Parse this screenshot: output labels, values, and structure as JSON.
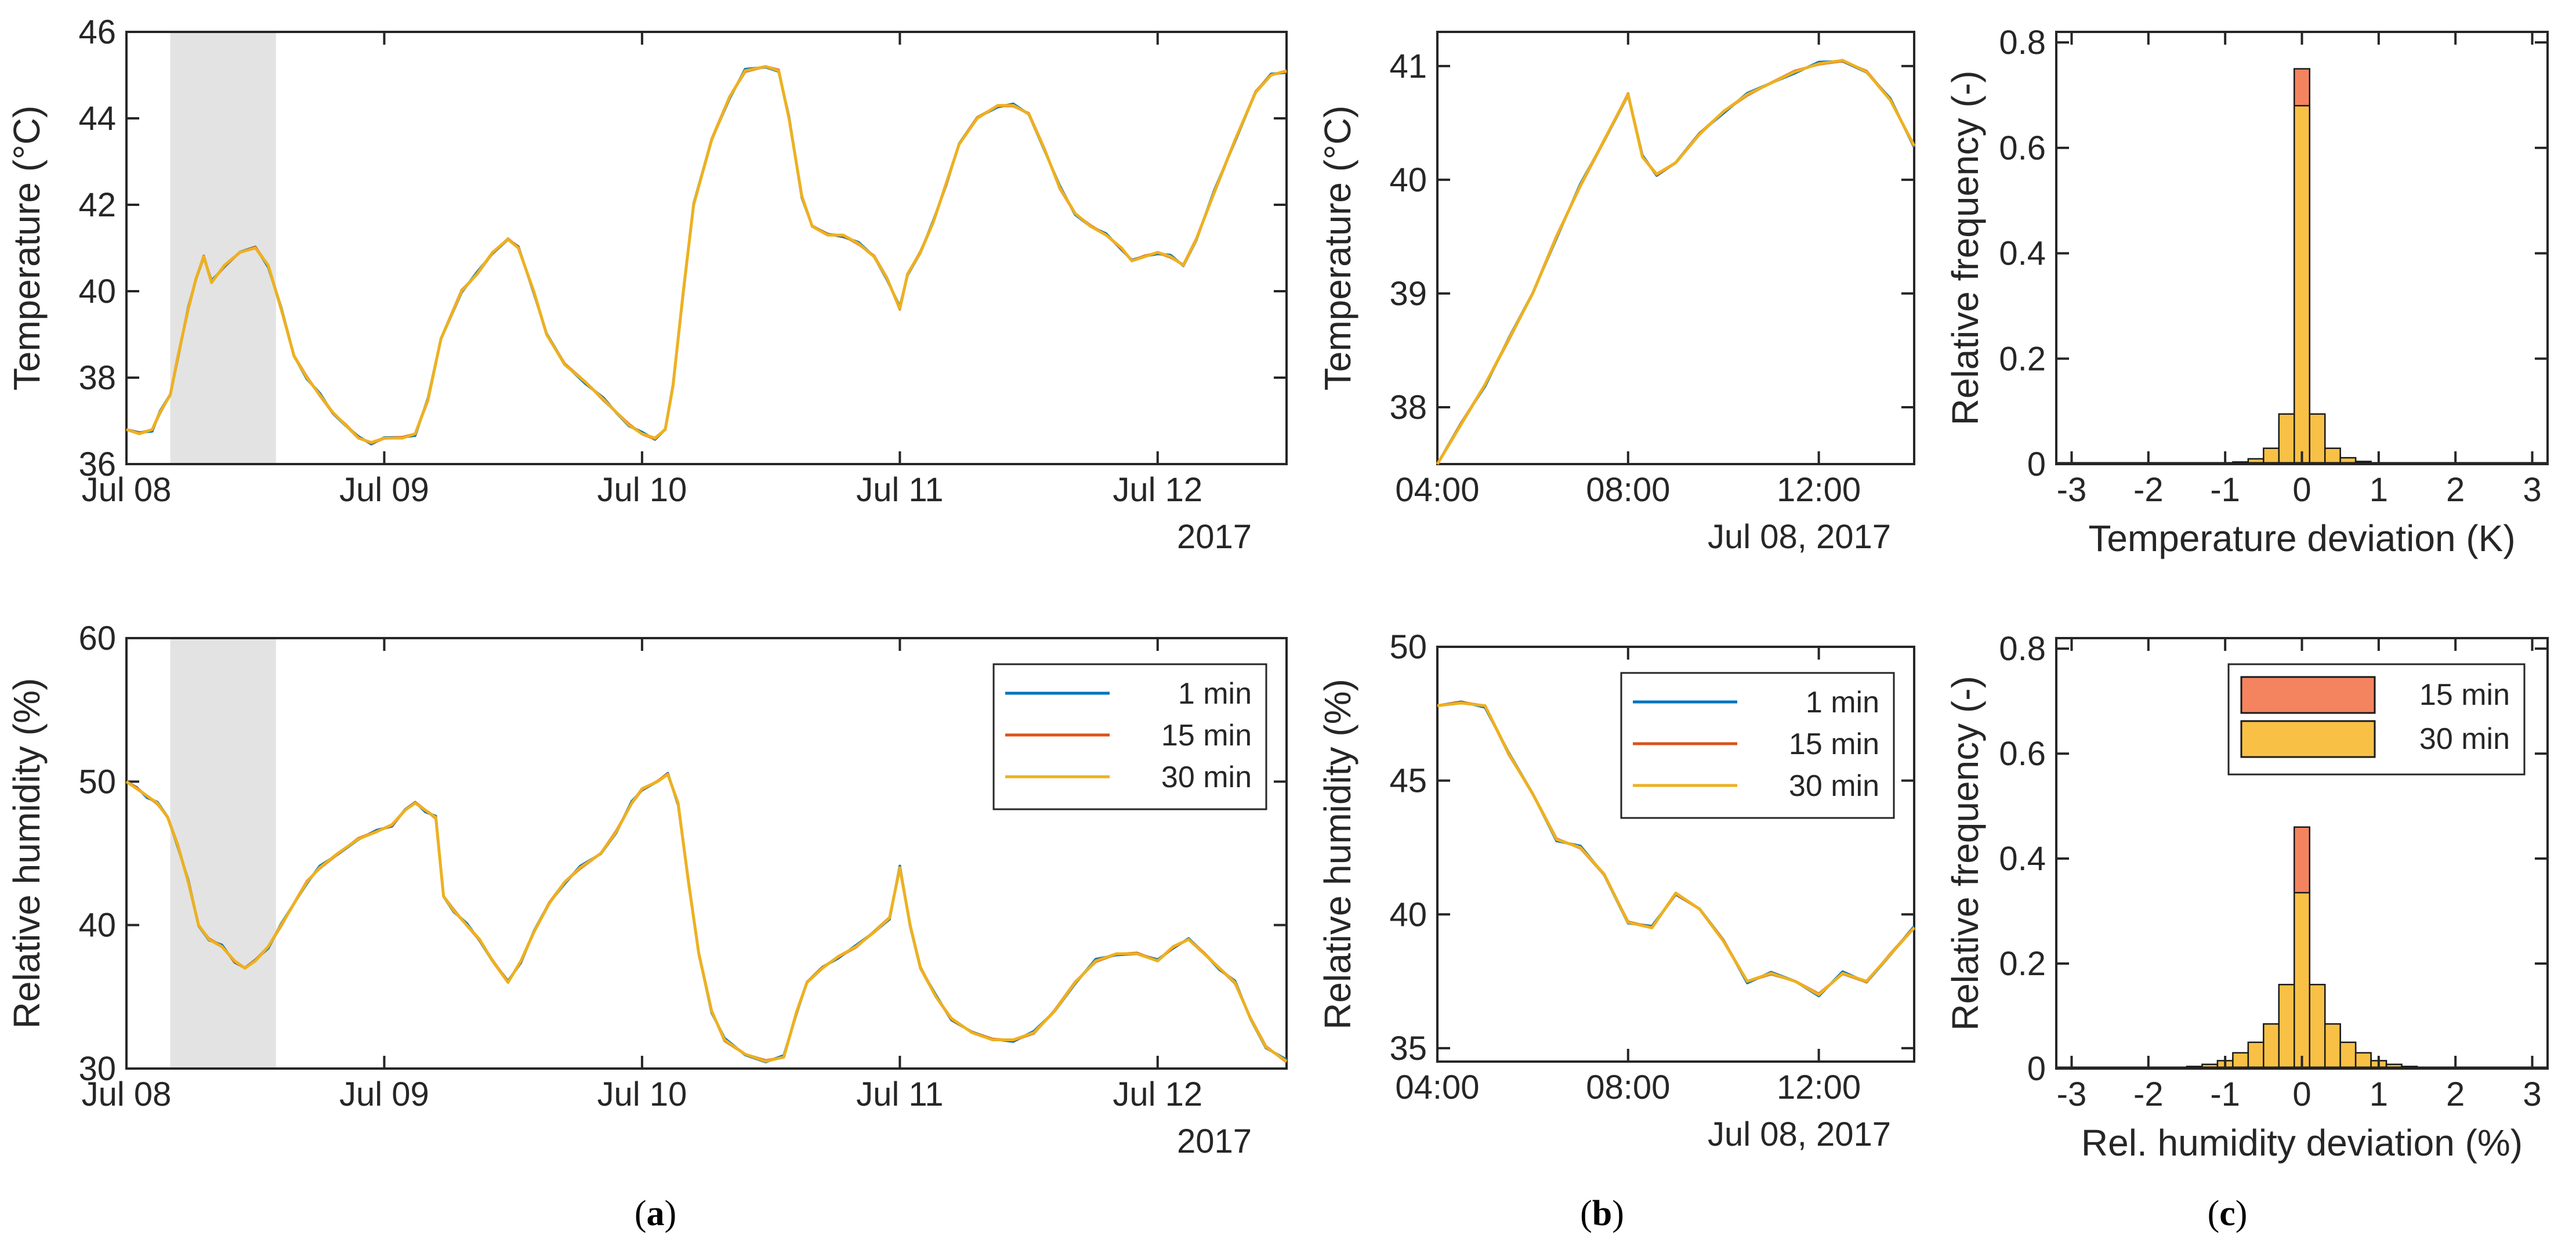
{
  "figure": {
    "captions": [
      "(a)",
      "(b)",
      "(c)"
    ],
    "caption_open": "(",
    "caption_close": ")",
    "caption_letters": [
      "a",
      "b",
      "c"
    ]
  },
  "colors": {
    "c1": "#0072BD",
    "c15": "#D95319",
    "c30": "#EDB120",
    "hist15": "#F4845F",
    "hist30": "#F8C146",
    "shade": "#E3E3E3",
    "axis": "#262626"
  },
  "chart_data": [
    {
      "id": "a-top",
      "type": "line",
      "ylabel": "Temperature (°C)",
      "ylim": [
        36,
        46
      ],
      "yticks": [
        "36",
        "38",
        "40",
        "42",
        "44",
        "46"
      ],
      "xlim": [
        0,
        4.5
      ],
      "xtick_labels": [
        "Jul 08",
        "Jul 09",
        "Jul 10",
        "Jul 11",
        "Jul 12"
      ],
      "xtick_values": [
        0,
        1,
        2,
        3,
        4
      ],
      "year_label": "2017",
      "shaded_interval_days": [
        0.17,
        0.58
      ],
      "series": [
        {
          "name": "1 min",
          "color_key": "c1"
        },
        {
          "name": "15 min",
          "color_key": "c15"
        },
        {
          "name": "30 min",
          "color_key": "c30"
        }
      ],
      "points": [
        [
          0.0,
          36.8
        ],
        [
          0.05,
          36.7
        ],
        [
          0.1,
          36.8
        ],
        [
          0.13,
          37.2
        ],
        [
          0.17,
          37.6
        ],
        [
          0.2,
          38.5
        ],
        [
          0.24,
          39.6
        ],
        [
          0.27,
          40.3
        ],
        [
          0.3,
          40.8
        ],
        [
          0.33,
          40.2
        ],
        [
          0.38,
          40.6
        ],
        [
          0.44,
          40.9
        ],
        [
          0.5,
          41.0
        ],
        [
          0.55,
          40.6
        ],
        [
          0.6,
          39.6
        ],
        [
          0.65,
          38.5
        ],
        [
          0.7,
          38.0
        ],
        [
          0.75,
          37.6
        ],
        [
          0.8,
          37.2
        ],
        [
          0.85,
          36.9
        ],
        [
          0.9,
          36.6
        ],
        [
          0.95,
          36.5
        ],
        [
          1.0,
          36.6
        ],
        [
          1.07,
          36.6
        ],
        [
          1.12,
          36.7
        ],
        [
          1.17,
          37.5
        ],
        [
          1.22,
          38.9
        ],
        [
          1.3,
          40.0
        ],
        [
          1.36,
          40.4
        ],
        [
          1.42,
          40.9
        ],
        [
          1.48,
          41.2
        ],
        [
          1.52,
          41.0
        ],
        [
          1.58,
          40.0
        ],
        [
          1.63,
          39.0
        ],
        [
          1.7,
          38.3
        ],
        [
          1.78,
          37.9
        ],
        [
          1.85,
          37.5
        ],
        [
          1.9,
          37.2
        ],
        [
          1.95,
          36.9
        ],
        [
          2.0,
          36.7
        ],
        [
          2.05,
          36.6
        ],
        [
          2.09,
          36.8
        ],
        [
          2.12,
          37.8
        ],
        [
          2.16,
          40.0
        ],
        [
          2.2,
          42.0
        ],
        [
          2.27,
          43.5
        ],
        [
          2.34,
          44.5
        ],
        [
          2.4,
          45.1
        ],
        [
          2.48,
          45.2
        ],
        [
          2.53,
          45.1
        ],
        [
          2.57,
          44.0
        ],
        [
          2.62,
          42.2
        ],
        [
          2.66,
          41.5
        ],
        [
          2.72,
          41.3
        ],
        [
          2.78,
          41.3
        ],
        [
          2.84,
          41.1
        ],
        [
          2.9,
          40.8
        ],
        [
          2.95,
          40.3
        ],
        [
          3.0,
          39.6
        ],
        [
          3.03,
          40.4
        ],
        [
          3.08,
          40.9
        ],
        [
          3.13,
          41.6
        ],
        [
          3.18,
          42.5
        ],
        [
          3.23,
          43.4
        ],
        [
          3.3,
          44.0
        ],
        [
          3.38,
          44.3
        ],
        [
          3.44,
          44.3
        ],
        [
          3.5,
          44.1
        ],
        [
          3.56,
          43.3
        ],
        [
          3.62,
          42.4
        ],
        [
          3.68,
          41.8
        ],
        [
          3.74,
          41.5
        ],
        [
          3.8,
          41.3
        ],
        [
          3.86,
          41.0
        ],
        [
          3.9,
          40.7
        ],
        [
          3.95,
          40.8
        ],
        [
          4.0,
          40.9
        ],
        [
          4.05,
          40.8
        ],
        [
          4.1,
          40.6
        ],
        [
          4.15,
          41.2
        ],
        [
          4.22,
          42.3
        ],
        [
          4.3,
          43.5
        ],
        [
          4.38,
          44.6
        ],
        [
          4.44,
          45.0
        ],
        [
          4.5,
          45.1
        ]
      ]
    },
    {
      "id": "a-bottom",
      "type": "line",
      "ylabel": "Relative humidity (%)",
      "ylim": [
        30,
        60
      ],
      "yticks": [
        "30",
        "40",
        "50",
        "60"
      ],
      "xlim": [
        0,
        4.5
      ],
      "xtick_labels": [
        "Jul 08",
        "Jul 09",
        "Jul 10",
        "Jul 11",
        "Jul 12"
      ],
      "xtick_values": [
        0,
        1,
        2,
        3,
        4
      ],
      "year_label": "2017",
      "shaded_interval_days": [
        0.17,
        0.58
      ],
      "legend": {
        "entries": [
          "1 min",
          "15 min",
          "30 min"
        ],
        "position": "top-right"
      },
      "series": [
        {
          "name": "1 min",
          "color_key": "c1"
        },
        {
          "name": "15 min",
          "color_key": "c15"
        },
        {
          "name": "30 min",
          "color_key": "c30"
        }
      ],
      "points": [
        [
          0.0,
          50.0
        ],
        [
          0.04,
          49.5
        ],
        [
          0.08,
          49.0
        ],
        [
          0.12,
          48.5
        ],
        [
          0.16,
          47.5
        ],
        [
          0.2,
          45.5
        ],
        [
          0.24,
          43.0
        ],
        [
          0.28,
          40.0
        ],
        [
          0.32,
          39.0
        ],
        [
          0.37,
          38.5
        ],
        [
          0.42,
          37.5
        ],
        [
          0.46,
          37.0
        ],
        [
          0.5,
          37.5
        ],
        [
          0.55,
          38.5
        ],
        [
          0.6,
          40.0
        ],
        [
          0.65,
          41.5
        ],
        [
          0.7,
          43.0
        ],
        [
          0.75,
          44.0
        ],
        [
          0.82,
          45.0
        ],
        [
          0.9,
          46.0
        ],
        [
          0.97,
          46.5
        ],
        [
          1.03,
          47.0
        ],
        [
          1.08,
          48.0
        ],
        [
          1.12,
          48.5
        ],
        [
          1.16,
          48.0
        ],
        [
          1.2,
          47.5
        ],
        [
          1.23,
          42.0
        ],
        [
          1.27,
          41.0
        ],
        [
          1.32,
          40.0
        ],
        [
          1.37,
          39.0
        ],
        [
          1.42,
          37.5
        ],
        [
          1.48,
          36.0
        ],
        [
          1.53,
          37.5
        ],
        [
          1.58,
          39.5
        ],
        [
          1.64,
          41.5
        ],
        [
          1.7,
          43.0
        ],
        [
          1.76,
          44.0
        ],
        [
          1.84,
          45.0
        ],
        [
          1.9,
          46.5
        ],
        [
          1.96,
          48.5
        ],
        [
          2.0,
          49.5
        ],
        [
          2.06,
          50.0
        ],
        [
          2.1,
          50.5
        ],
        [
          2.14,
          48.5
        ],
        [
          2.18,
          43.0
        ],
        [
          2.22,
          38.0
        ],
        [
          2.27,
          34.0
        ],
        [
          2.32,
          32.0
        ],
        [
          2.4,
          31.0
        ],
        [
          2.48,
          30.5
        ],
        [
          2.55,
          30.8
        ],
        [
          2.6,
          34.0
        ],
        [
          2.64,
          36.0
        ],
        [
          2.7,
          37.0
        ],
        [
          2.76,
          37.8
        ],
        [
          2.83,
          38.5
        ],
        [
          2.9,
          39.5
        ],
        [
          2.96,
          40.5
        ],
        [
          3.0,
          44.0
        ],
        [
          3.04,
          40.0
        ],
        [
          3.08,
          37.0
        ],
        [
          3.14,
          35.0
        ],
        [
          3.2,
          33.5
        ],
        [
          3.28,
          32.5
        ],
        [
          3.36,
          32.0
        ],
        [
          3.44,
          32.0
        ],
        [
          3.52,
          32.5
        ],
        [
          3.6,
          34.0
        ],
        [
          3.68,
          36.0
        ],
        [
          3.76,
          37.5
        ],
        [
          3.84,
          38.0
        ],
        [
          3.92,
          38.0
        ],
        [
          4.0,
          37.5
        ],
        [
          4.06,
          38.5
        ],
        [
          4.12,
          39.0
        ],
        [
          4.18,
          38.0
        ],
        [
          4.24,
          37.0
        ],
        [
          4.3,
          36.0
        ],
        [
          4.36,
          33.5
        ],
        [
          4.42,
          31.5
        ],
        [
          4.5,
          30.5
        ]
      ]
    },
    {
      "id": "b-top",
      "type": "line",
      "ylabel": "Temperature (°C)",
      "ylim": [
        37.5,
        41.3
      ],
      "yticks": [
        "38",
        "39",
        "40",
        "41"
      ],
      "ytick_values": [
        38,
        39,
        40,
        41
      ],
      "xlim": [
        4,
        14
      ],
      "xtick_labels": [
        "04:00",
        "08:00",
        "12:00"
      ],
      "xtick_values": [
        4,
        8,
        12
      ],
      "date_label": "Jul 08, 2017",
      "series": [
        {
          "name": "1 min",
          "color_key": "c1"
        },
        {
          "name": "15 min",
          "color_key": "c15"
        },
        {
          "name": "30 min",
          "color_key": "c30"
        }
      ],
      "points": [
        [
          4.0,
          37.5
        ],
        [
          4.5,
          37.85
        ],
        [
          5.0,
          38.2
        ],
        [
          5.5,
          38.6
        ],
        [
          6.0,
          39.0
        ],
        [
          6.5,
          39.5
        ],
        [
          7.0,
          39.95
        ],
        [
          7.5,
          40.35
        ],
        [
          8.0,
          40.75
        ],
        [
          8.3,
          40.2
        ],
        [
          8.6,
          40.05
        ],
        [
          9.0,
          40.15
        ],
        [
          9.5,
          40.4
        ],
        [
          10.0,
          40.6
        ],
        [
          10.5,
          40.75
        ],
        [
          11.0,
          40.85
        ],
        [
          11.5,
          40.95
        ],
        [
          12.0,
          41.02
        ],
        [
          12.5,
          41.05
        ],
        [
          13.0,
          40.95
        ],
        [
          13.5,
          40.7
        ],
        [
          14.0,
          40.3
        ]
      ]
    },
    {
      "id": "b-bottom",
      "type": "line",
      "ylabel": "Relative humidity (%)",
      "ylim": [
        34.5,
        50
      ],
      "yticks": [
        "35",
        "40",
        "45",
        "50"
      ],
      "ytick_values": [
        35,
        40,
        45,
        50
      ],
      "xlim": [
        4,
        14
      ],
      "xtick_labels": [
        "04:00",
        "08:00",
        "12:00"
      ],
      "xtick_values": [
        4,
        8,
        12
      ],
      "date_label": "Jul 08, 2017",
      "legend": {
        "entries": [
          "1 min",
          "15 min",
          "30 min"
        ],
        "position": "top-right"
      },
      "series": [
        {
          "name": "1 min",
          "color_key": "c1"
        },
        {
          "name": "15 min",
          "color_key": "c15"
        },
        {
          "name": "30 min",
          "color_key": "c30"
        }
      ],
      "points": [
        [
          4.0,
          47.8
        ],
        [
          4.5,
          47.9
        ],
        [
          5.0,
          47.8
        ],
        [
          5.5,
          46.0
        ],
        [
          6.0,
          44.5
        ],
        [
          6.5,
          42.8
        ],
        [
          7.0,
          42.5
        ],
        [
          7.5,
          41.5
        ],
        [
          8.0,
          39.7
        ],
        [
          8.5,
          39.5
        ],
        [
          9.0,
          40.8
        ],
        [
          9.5,
          40.2
        ],
        [
          10.0,
          39.0
        ],
        [
          10.5,
          37.5
        ],
        [
          11.0,
          37.8
        ],
        [
          11.5,
          37.5
        ],
        [
          12.0,
          37.0
        ],
        [
          12.5,
          37.8
        ],
        [
          13.0,
          37.5
        ],
        [
          13.5,
          38.5
        ],
        [
          14.0,
          39.5
        ]
      ]
    },
    {
      "id": "c-top",
      "type": "histogram",
      "ylabel": "Relative frequency (-)",
      "xlabel": "Temperature deviation (K)",
      "xlim": [
        -3.2,
        3.2
      ],
      "ylim": [
        0,
        0.82
      ],
      "xticks": [
        "-3",
        "-2",
        "-1",
        "0",
        "1",
        "2",
        "3"
      ],
      "yticks": [
        "0",
        "0.2",
        "0.4",
        "0.6",
        "0.8"
      ],
      "bin_width": 0.2,
      "bin_centers": [
        -1.0,
        -0.8,
        -0.6,
        -0.4,
        -0.2,
        0.0,
        0.2,
        0.4,
        0.6,
        0.8,
        1.0
      ],
      "series": [
        {
          "name": "15 min",
          "color_key": "hist15",
          "values": [
            0.0,
            0.002,
            0.005,
            0.012,
            0.08,
            0.75,
            0.09,
            0.015,
            0.004,
            0.002,
            0.0
          ]
        },
        {
          "name": "30 min",
          "color_key": "hist30",
          "values": [
            0.001,
            0.004,
            0.01,
            0.03,
            0.095,
            0.68,
            0.095,
            0.03,
            0.012,
            0.005,
            0.002
          ]
        }
      ]
    },
    {
      "id": "c-bottom",
      "type": "histogram",
      "ylabel": "Relative frequency (-)",
      "xlabel": "Rel. humidity deviation (%)",
      "xlim": [
        -3.2,
        3.2
      ],
      "ylim": [
        0,
        0.82
      ],
      "xticks": [
        "-3",
        "-2",
        "-1",
        "0",
        "1",
        "2",
        "3"
      ],
      "yticks": [
        "0",
        "0.2",
        "0.4",
        "0.6",
        "0.8"
      ],
      "bin_width": 0.2,
      "bin_centers": [
        -1.6,
        -1.4,
        -1.2,
        -1.0,
        -0.8,
        -0.6,
        -0.4,
        -0.2,
        0.0,
        0.2,
        0.4,
        0.6,
        0.8,
        1.0,
        1.2,
        1.4,
        1.6
      ],
      "legend": {
        "entries": [
          "15 min",
          "30 min"
        ],
        "position": "top-right"
      },
      "series": [
        {
          "name": "15 min",
          "color_key": "hist15",
          "values": [
            0.0,
            0.0,
            0.003,
            0.008,
            0.02,
            0.04,
            0.08,
            0.15,
            0.46,
            0.15,
            0.08,
            0.04,
            0.02,
            0.008,
            0.003,
            0.0,
            0.0
          ]
        },
        {
          "name": "30 min",
          "color_key": "hist30",
          "values": [
            0.002,
            0.004,
            0.008,
            0.015,
            0.03,
            0.05,
            0.085,
            0.16,
            0.335,
            0.16,
            0.085,
            0.05,
            0.03,
            0.015,
            0.008,
            0.004,
            0.002
          ]
        }
      ]
    }
  ]
}
